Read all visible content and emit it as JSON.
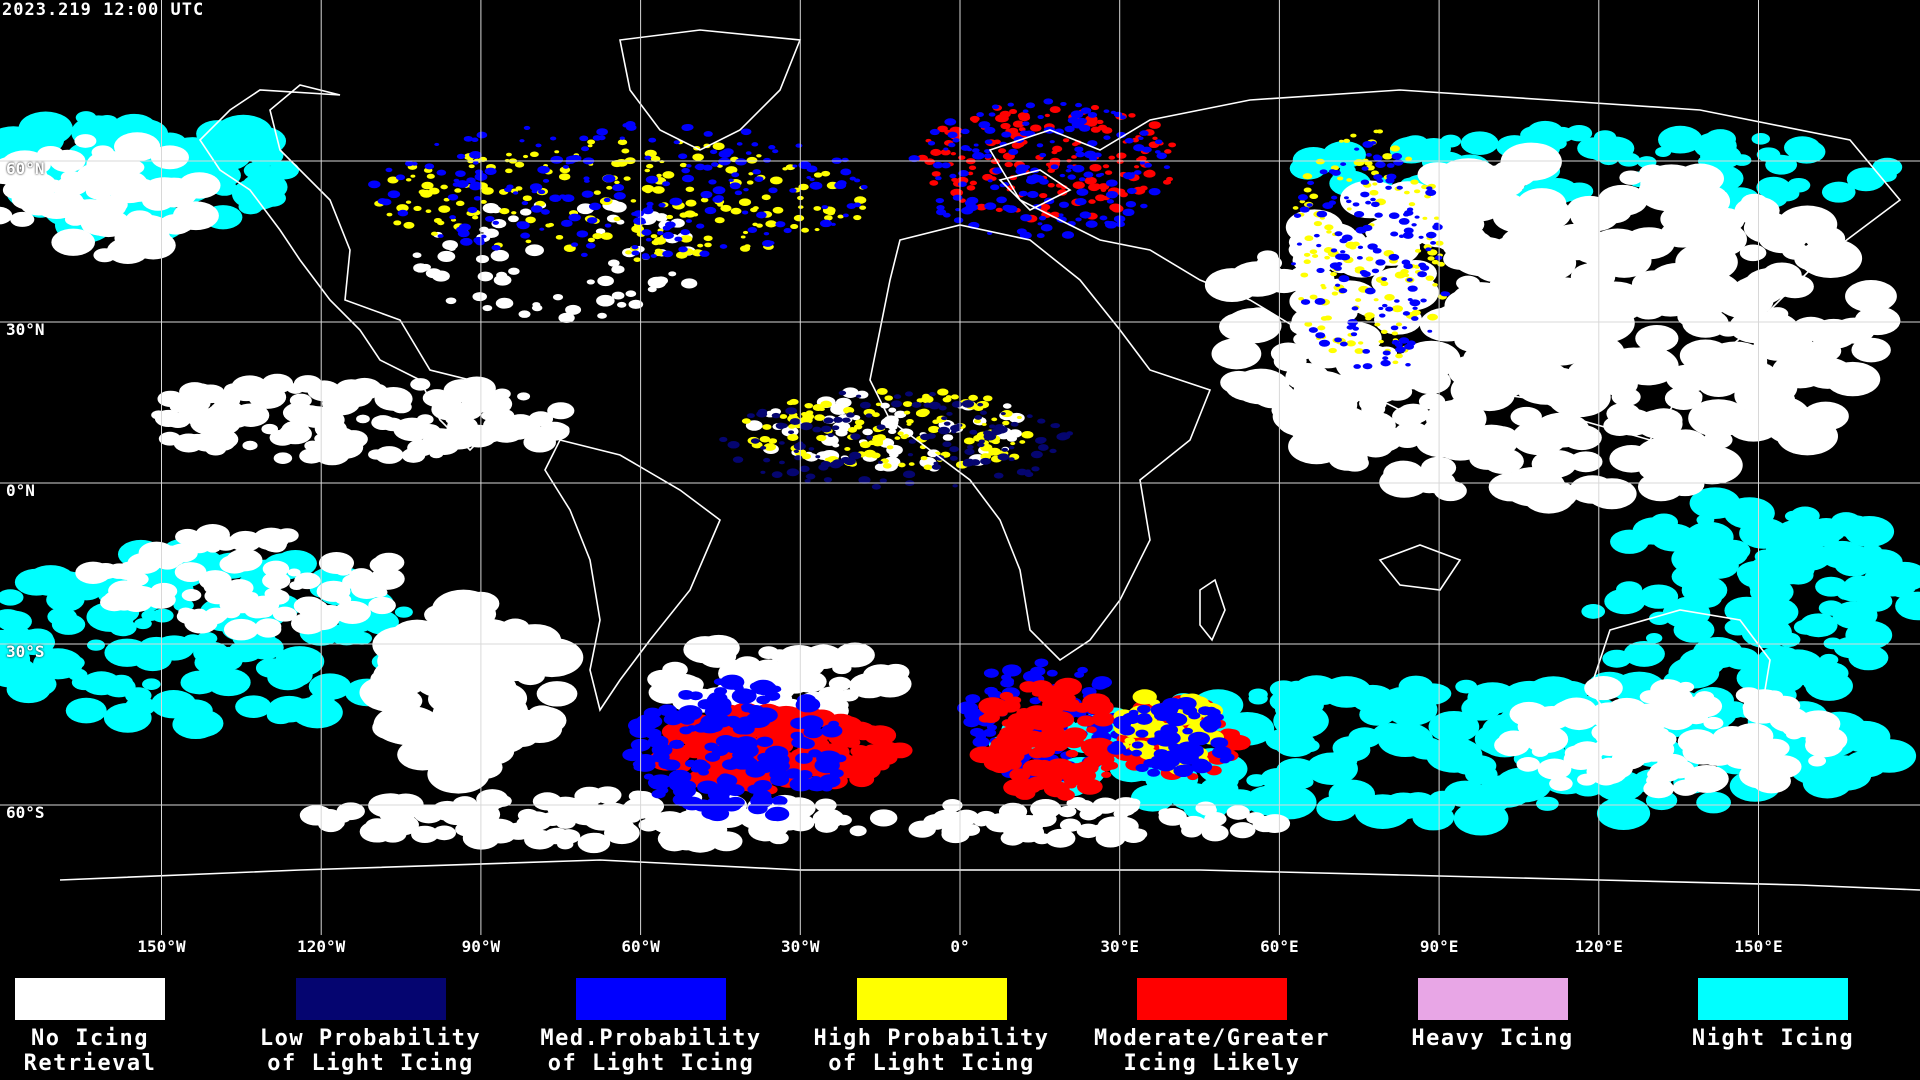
{
  "timestamp": "2023.219 12:00 UTC",
  "lat_labels": [
    {
      "text": "60°N",
      "lat": 60
    },
    {
      "text": "30°N",
      "lat": 30
    },
    {
      "text": "0°N",
      "lat": 0
    },
    {
      "text": "30°S",
      "lat": -30
    },
    {
      "text": "60°S",
      "lat": -60
    }
  ],
  "lon_labels": [
    {
      "text": "150°W",
      "lon": -150
    },
    {
      "text": "120°W",
      "lon": -120
    },
    {
      "text": "90°W",
      "lon": -90
    },
    {
      "text": "60°W",
      "lon": -60
    },
    {
      "text": "30°W",
      "lon": -30
    },
    {
      "text": "0°",
      "lon": 0
    },
    {
      "text": "30°E",
      "lon": 30
    },
    {
      "text": "60°E",
      "lon": 60
    },
    {
      "text": "90°E",
      "lon": 90
    },
    {
      "text": "120°E",
      "lon": 120
    },
    {
      "text": "150°E",
      "lon": 150
    }
  ],
  "legend": [
    {
      "label": "No Icing\nRetrieval",
      "color": "#ffffff"
    },
    {
      "label": "Low Probability\nof Light Icing",
      "color": "#050570"
    },
    {
      "label": "Med.Probability\nof Light Icing",
      "color": "#0000ff"
    },
    {
      "label": "High Probability\nof Light Icing",
      "color": "#ffff00"
    },
    {
      "label": "Moderate/Greater\nIcing Likely",
      "color": "#ff0000"
    },
    {
      "label": "Heavy Icing",
      "color": "#e8a6e6"
    },
    {
      "label": "Night Icing",
      "color": "#00ffff"
    }
  ],
  "colors": {
    "background": "#000000",
    "grid": "#d8d8d8",
    "coastline": "#ffffff"
  }
}
